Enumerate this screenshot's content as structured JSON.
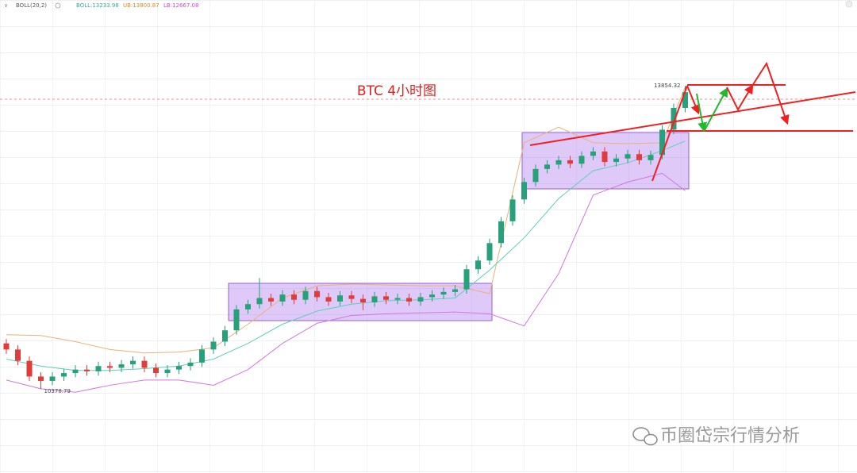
{
  "chart_data": {
    "type": "candlestick",
    "title": "BTC 4小时图",
    "indicator_legend": [
      "BOLL(20,2)",
      "BOLL:13233.98",
      "UB:13800.87",
      "LB:12667.08"
    ],
    "watermark": "币圈岱宗行情分析",
    "up_color": "#26a17b",
    "down_color": "#e23b3b",
    "ylim": [
      9414,
      14837
    ],
    "grid": true,
    "open": [
      10900,
      10830,
      10700,
      10520,
      10470,
      10520,
      10560,
      10600,
      10580,
      10640,
      10620,
      10660,
      10700,
      10620,
      10560,
      10600,
      10640,
      10680,
      10830,
      10920,
      11050,
      11290,
      11350,
      11420,
      11380,
      11460,
      11400,
      11500,
      11430,
      11380,
      11450,
      11410,
      11370,
      11440,
      11400,
      11420,
      11380,
      11430,
      11460,
      11490,
      11520,
      11750,
      11850,
      12050,
      12300,
      12550,
      12750,
      12900,
      12950,
      13000,
      12960,
      13050,
      13100,
      12980,
      13020,
      13070,
      13000,
      13060,
      13350,
      13600
    ],
    "high": [
      10950,
      10880,
      10750,
      10570,
      10570,
      10610,
      10650,
      10650,
      10690,
      10690,
      10710,
      10750,
      10750,
      10670,
      10650,
      10690,
      10730,
      10880,
      10970,
      11100,
      11340,
      11400,
      11650,
      11470,
      11510,
      11510,
      11550,
      11550,
      11480,
      11500,
      11500,
      11460,
      11490,
      11490,
      11470,
      11470,
      11480,
      11510,
      11540,
      11570,
      11800,
      11900,
      12100,
      12350,
      12600,
      12800,
      12950,
      13000,
      13050,
      13050,
      13100,
      13150,
      13150,
      13070,
      13120,
      13120,
      13110,
      13400,
      13650,
      13854.32
    ],
    "low": [
      10780,
      10650,
      10470,
      10378.79,
      10420,
      10470,
      10510,
      10530,
      10530,
      10570,
      10570,
      10610,
      10570,
      10510,
      10510,
      10550,
      10590,
      10630,
      10780,
      10870,
      11000,
      11240,
      11300,
      11330,
      11330,
      11350,
      11350,
      11380,
      11330,
      11330,
      11360,
      11280,
      11320,
      11350,
      11350,
      11330,
      11330,
      11380,
      11410,
      11440,
      11470,
      11700,
      11800,
      12000,
      12250,
      12500,
      12700,
      12850,
      12900,
      12910,
      12910,
      13000,
      12930,
      12930,
      12970,
      12950,
      12950,
      13010,
      13300,
      13550
    ],
    "close": [
      10830,
      10700,
      10520,
      10470,
      10520,
      10560,
      10600,
      10580,
      10640,
      10620,
      10660,
      10700,
      10620,
      10560,
      10600,
      10640,
      10680,
      10830,
      10920,
      11050,
      11290,
      11350,
      11420,
      11380,
      11460,
      11400,
      11500,
      11430,
      11380,
      11450,
      11410,
      11370,
      11440,
      11400,
      11420,
      11380,
      11430,
      11460,
      11490,
      11520,
      11750,
      11850,
      12050,
      12300,
      12550,
      12750,
      12900,
      12950,
      13000,
      12960,
      13050,
      13100,
      12980,
      13020,
      13070,
      13000,
      13060,
      13350,
      13600,
      13780
    ],
    "band_x": [
      0,
      3,
      6,
      9,
      12,
      15,
      18,
      21,
      24,
      27,
      30,
      33,
      36,
      39,
      42,
      45,
      48,
      51,
      54,
      57,
      59
    ],
    "bands": [
      {
        "color": "#e8b27a",
        "values": [
          11000,
          10990,
          10920,
          10830,
          10790,
          10800,
          10850,
          11120,
          11420,
          11560,
          11580,
          11570,
          11560,
          11560,
          11470,
          13200,
          13380,
          13200,
          13190,
          13200,
          13840
        ]
      },
      {
        "color": "#5fcfb8",
        "values": [
          10720,
          10640,
          10590,
          10590,
          10610,
          10640,
          10720,
          10900,
          11120,
          11270,
          11350,
          11390,
          11400,
          11420,
          11740,
          12110,
          12560,
          12880,
          12970,
          13110,
          13220
        ]
      },
      {
        "color": "#d276e0",
        "values": [
          10480,
          10380,
          10340,
          10420,
          10480,
          10480,
          10420,
          10600,
          10900,
          11130,
          11220,
          11240,
          11250,
          11260,
          11240,
          11100,
          11700,
          12600,
          12750,
          12850,
          12650
        ]
      }
    ]
  }
}
